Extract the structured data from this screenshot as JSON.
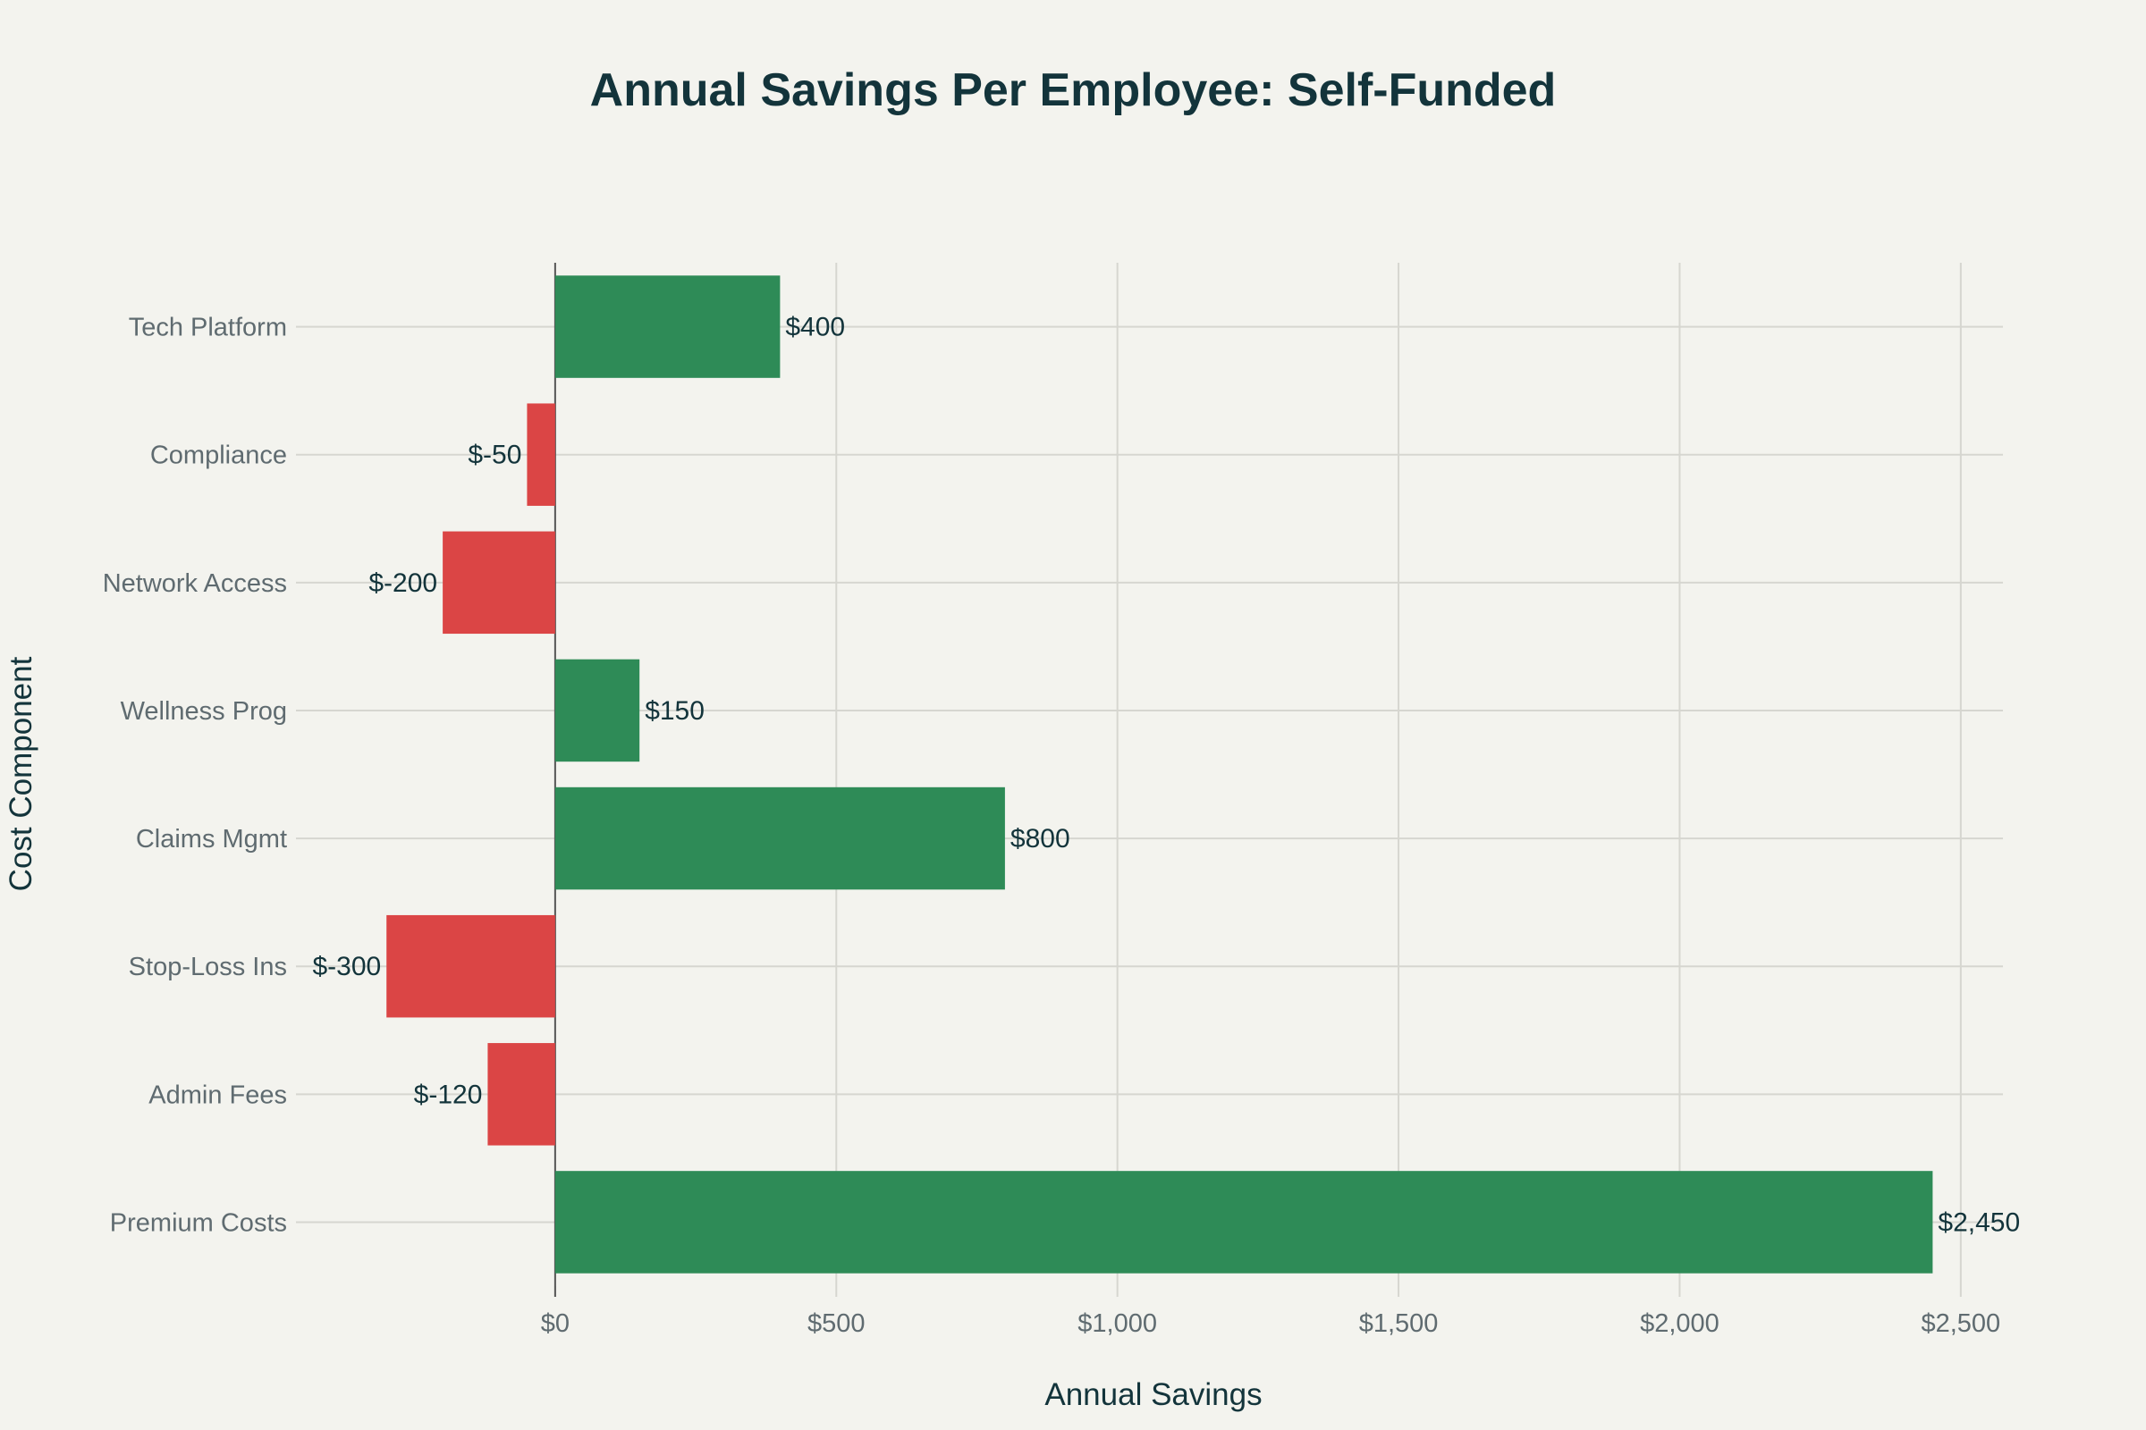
{
  "chart_data": {
    "type": "bar",
    "orientation": "horizontal",
    "title": "Annual Savings Per Employee: Self-Funded",
    "xlabel": "Annual Savings",
    "ylabel": "Cost Component",
    "categories": [
      "Premium Costs",
      "Admin Fees",
      "Stop-Loss Ins",
      "Claims Mgmt",
      "Wellness Prog",
      "Network Access",
      "Compliance",
      "Tech Platform"
    ],
    "values": [
      2450,
      -120,
      -300,
      800,
      150,
      -200,
      -50,
      400
    ],
    "data_labels": [
      "$2,450",
      "$-120",
      "$-300",
      "$800",
      "$150",
      "$-200",
      "$-50",
      "$400"
    ],
    "xticks": [
      0,
      500,
      1000,
      1500,
      2000,
      2500
    ],
    "xtick_labels": [
      "$0",
      "$500",
      "$1,000",
      "$1,500",
      "$2,000",
      "$2,500"
    ],
    "xlim": [
      -461,
      2575
    ],
    "grid": true,
    "colors": {
      "positive": "#2E8B57",
      "negative": "#DB4545",
      "background": "#F3F3EE",
      "text": "#13343B"
    }
  }
}
